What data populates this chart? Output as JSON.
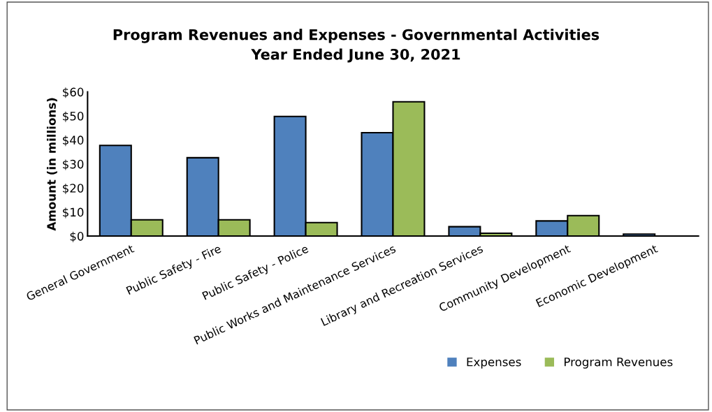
{
  "chart_data": {
    "type": "bar",
    "title": "Program Revenues and Expenses - Governmental Activities\nYear Ended June 30, 2021",
    "ylabel": "Amount (in millions)",
    "categories": [
      "General Government",
      "Public Safety - Fire",
      "Public Safety - Police",
      "Public Works and Maintenance Services",
      "Library and Recreation Services",
      "Community Development",
      "Economic Development"
    ],
    "series": [
      {
        "name": "Expenses",
        "color": "#4f81bd",
        "values": [
          37.7,
          32.6,
          49.8,
          43.0,
          3.9,
          6.3,
          0.8
        ]
      },
      {
        "name": "Program Revenues",
        "color": "#9bbb59",
        "values": [
          6.8,
          6.8,
          5.6,
          55.9,
          1.2,
          8.5,
          null
        ]
      }
    ],
    "ylim": [
      0,
      60
    ],
    "yticks": [
      {
        "value": 0,
        "label": "$0"
      },
      {
        "value": 10,
        "label": "$10"
      },
      {
        "value": 20,
        "label": "$20"
      },
      {
        "value": 30,
        "label": "$30"
      },
      {
        "value": 40,
        "label": "$40"
      },
      {
        "value": 50,
        "label": "$50"
      },
      {
        "value": 60,
        "label": "$60"
      }
    ],
    "grid": false,
    "legend": "bottom right"
  }
}
